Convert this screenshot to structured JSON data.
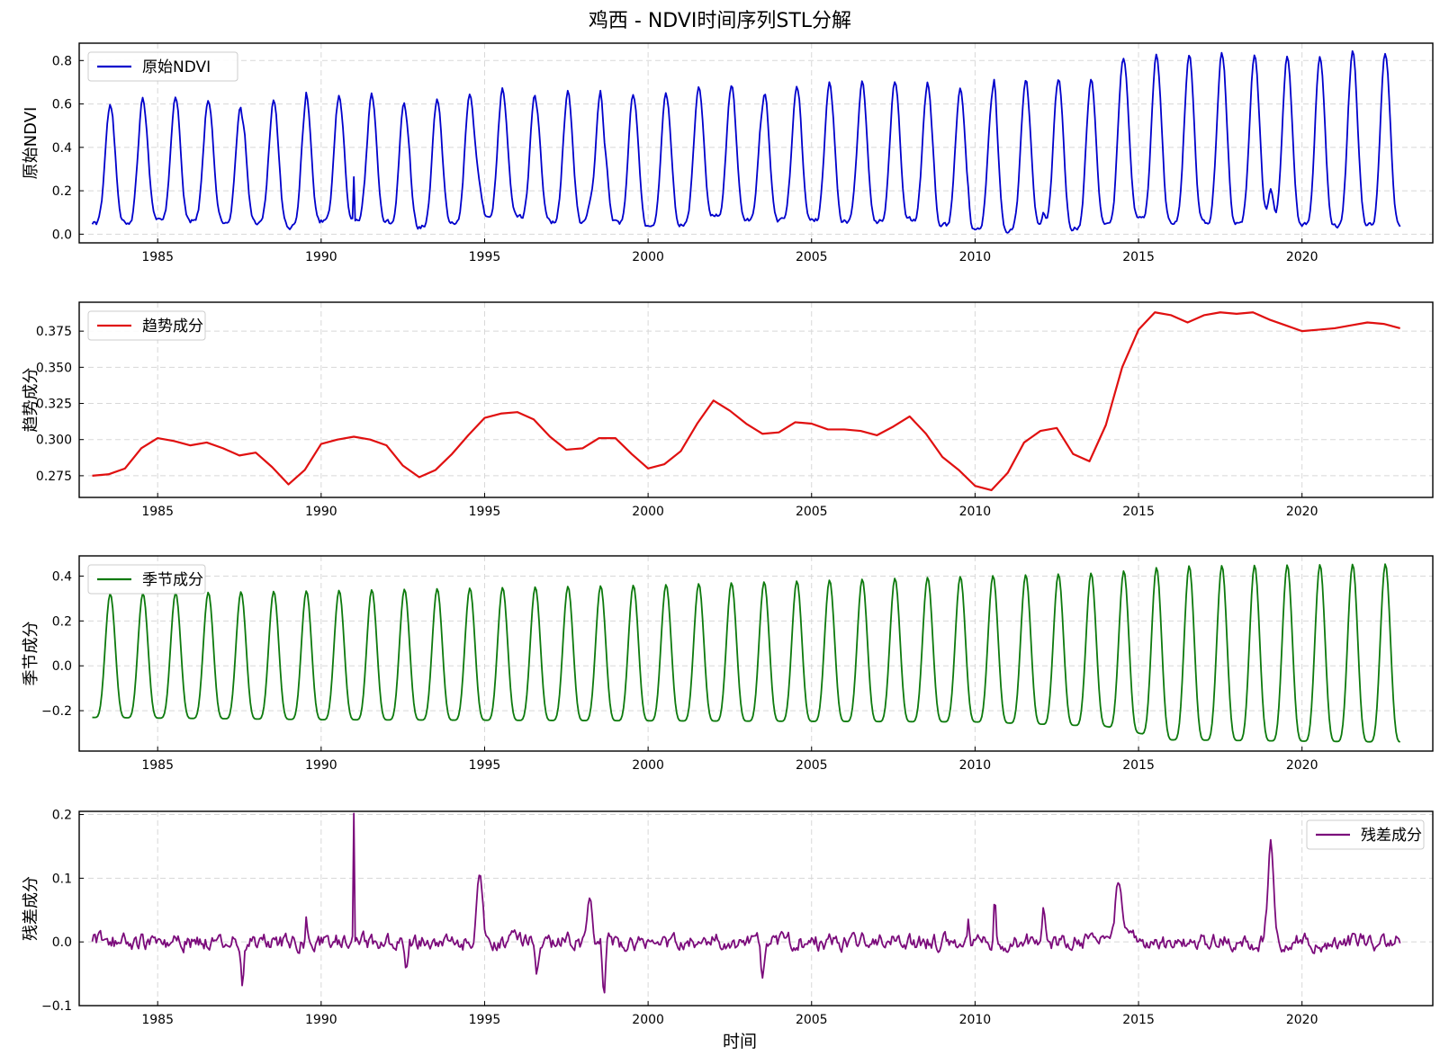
{
  "figure": {
    "title": "鸡西 - NDVI时间序列STL分解",
    "xlabel": "时间"
  },
  "chart_data": [
    {
      "type": "line",
      "series": [
        {
          "name": "原始NDVI",
          "color": "#0000cc"
        }
      ],
      "ylabel": "原始NDVI",
      "xlim": [
        1982.6,
        2024.0
      ],
      "ylim": [
        -0.04,
        0.88
      ],
      "x_ticks": [
        1985,
        1990,
        1995,
        2000,
        2005,
        2010,
        2015,
        2020
      ],
      "x_tick_labels": [
        "1985",
        "1990",
        "1995",
        "2000",
        "2005",
        "2010",
        "2015",
        "2020"
      ],
      "y_ticks": [
        0.0,
        0.2,
        0.4,
        0.6,
        0.8
      ],
      "y_tick_labels": [
        "0.0",
        "0.2",
        "0.4",
        "0.6",
        "0.8"
      ],
      "legend": "top-left",
      "grid": true,
      "model": "trend + seasonal + residual",
      "x_range": [
        1983.0,
        2023.0
      ]
    },
    {
      "type": "line",
      "series": [
        {
          "name": "趋势成分",
          "color": "#e01010"
        }
      ],
      "ylabel": "趋势成分",
      "xlim": [
        1982.6,
        2024.0
      ],
      "ylim": [
        0.26,
        0.395
      ],
      "x_ticks": [
        1985,
        1990,
        1995,
        2000,
        2005,
        2010,
        2015,
        2020
      ],
      "x_tick_labels": [
        "1985",
        "1990",
        "1995",
        "2000",
        "2005",
        "2010",
        "2015",
        "2020"
      ],
      "y_ticks": [
        0.275,
        0.3,
        0.325,
        0.35,
        0.375
      ],
      "y_tick_labels": [
        "0.275",
        "0.300",
        "0.325",
        "0.350",
        "0.375"
      ],
      "legend": "top-left",
      "grid": true,
      "x": [
        1983.0,
        1983.5,
        1984.0,
        1984.5,
        1985.0,
        1985.5,
        1986.0,
        1986.5,
        1987.0,
        1987.5,
        1988.0,
        1988.5,
        1989.0,
        1989.5,
        1990.0,
        1990.5,
        1991.0,
        1991.5,
        1992.0,
        1992.5,
        1993.0,
        1993.5,
        1994.0,
        1994.5,
        1995.0,
        1995.5,
        1996.0,
        1996.5,
        1997.0,
        1997.5,
        1998.0,
        1998.5,
        1999.0,
        1999.5,
        2000.0,
        2000.5,
        2001.0,
        2001.5,
        2002.0,
        2002.5,
        2003.0,
        2003.5,
        2004.0,
        2004.5,
        2005.0,
        2005.5,
        2006.0,
        2006.5,
        2007.0,
        2007.5,
        2008.0,
        2008.5,
        2009.0,
        2009.5,
        2010.0,
        2010.5,
        2011.0,
        2011.5,
        2012.0,
        2012.5,
        2013.0,
        2013.5,
        2014.0,
        2014.5,
        2015.0,
        2015.5,
        2016.0,
        2016.5,
        2017.0,
        2017.5,
        2018.0,
        2018.5,
        2019.0,
        2019.5,
        2020.0,
        2020.5,
        2021.0,
        2021.5,
        2022.0,
        2022.5,
        2023.0
      ],
      "values": [
        0.275,
        0.276,
        0.28,
        0.294,
        0.301,
        0.299,
        0.296,
        0.298,
        0.294,
        0.289,
        0.291,
        0.281,
        0.269,
        0.279,
        0.297,
        0.3,
        0.302,
        0.3,
        0.296,
        0.282,
        0.274,
        0.279,
        0.29,
        0.303,
        0.315,
        0.318,
        0.319,
        0.314,
        0.302,
        0.293,
        0.294,
        0.301,
        0.301,
        0.29,
        0.28,
        0.283,
        0.292,
        0.311,
        0.327,
        0.32,
        0.311,
        0.304,
        0.305,
        0.312,
        0.311,
        0.307,
        0.307,
        0.306,
        0.303,
        0.309,
        0.316,
        0.304,
        0.288,
        0.279,
        0.268,
        0.265,
        0.277,
        0.298,
        0.306,
        0.308,
        0.29,
        0.285,
        0.31,
        0.35,
        0.376,
        0.388,
        0.386,
        0.381,
        0.386,
        0.388,
        0.387,
        0.388,
        0.383,
        0.379,
        0.375,
        0.376,
        0.377,
        0.379,
        0.381,
        0.38,
        0.377
      ]
    },
    {
      "type": "line",
      "series": [
        {
          "name": "季节成分",
          "color": "#0d7a0d"
        }
      ],
      "ylabel": "季节成分",
      "xlim": [
        1982.6,
        2024.0
      ],
      "ylim": [
        -0.38,
        0.49
      ],
      "x_ticks": [
        1985,
        1990,
        1995,
        2000,
        2005,
        2010,
        2015,
        2020
      ],
      "x_tick_labels": [
        "1985",
        "1990",
        "1995",
        "2000",
        "2005",
        "2010",
        "2015",
        "2020"
      ],
      "y_ticks": [
        -0.2,
        0.0,
        0.2,
        0.4
      ],
      "y_tick_labels": [
        "−0.2",
        "0.0",
        "0.2",
        "0.4"
      ],
      "legend": "top-left",
      "grid": true,
      "x_range": [
        1983.0,
        2023.0
      ],
      "period_years": 1.0,
      "peak_phase": 0.55,
      "amplitude_years": [
        1983,
        1990,
        2000,
        2010,
        2014,
        2016,
        2023
      ],
      "peak_values": [
        0.32,
        0.335,
        0.36,
        0.4,
        0.415,
        0.445,
        0.455
      ],
      "trough_values": [
        -0.23,
        -0.24,
        -0.245,
        -0.25,
        -0.27,
        -0.33,
        -0.34
      ]
    },
    {
      "type": "line",
      "series": [
        {
          "name": "残差成分",
          "color": "#7b0b7b"
        }
      ],
      "ylabel": "残差成分",
      "xlim": [
        1982.6,
        2024.0
      ],
      "ylim": [
        -0.1,
        0.205
      ],
      "x_ticks": [
        1985,
        1990,
        1995,
        2000,
        2005,
        2010,
        2015,
        2020
      ],
      "x_tick_labels": [
        "1985",
        "1990",
        "1995",
        "2000",
        "2005",
        "2010",
        "2015",
        "2020"
      ],
      "y_ticks": [
        -0.1,
        0.0,
        0.1,
        0.2
      ],
      "y_tick_labels": [
        "−0.1",
        "0.0",
        "0.1",
        "0.2"
      ],
      "legend": "top-right",
      "grid": true,
      "x_range": [
        1983.0,
        2023.0
      ],
      "noise_amplitude": 0.015,
      "features": [
        {
          "x": 1991.0,
          "y": 0.19,
          "width": 0.02
        },
        {
          "x": 1994.85,
          "y": 0.115,
          "width": 0.12
        },
        {
          "x": 1998.2,
          "y": 0.065,
          "width": 0.12
        },
        {
          "x": 1998.65,
          "y": -0.085,
          "width": 0.06
        },
        {
          "x": 1996.6,
          "y": -0.06,
          "width": 0.07
        },
        {
          "x": 1987.6,
          "y": -0.055,
          "width": 0.06
        },
        {
          "x": 1992.6,
          "y": -0.05,
          "width": 0.06
        },
        {
          "x": 2003.5,
          "y": -0.058,
          "width": 0.06
        },
        {
          "x": 2010.6,
          "y": 0.062,
          "width": 0.05
        },
        {
          "x": 2012.1,
          "y": 0.048,
          "width": 0.06
        },
        {
          "x": 2014.4,
          "y": 0.1,
          "width": 0.15
        },
        {
          "x": 2019.05,
          "y": 0.158,
          "width": 0.13
        },
        {
          "x": 2009.8,
          "y": 0.04,
          "width": 0.05
        },
        {
          "x": 1989.55,
          "y": 0.035,
          "width": 0.05
        }
      ]
    }
  ]
}
